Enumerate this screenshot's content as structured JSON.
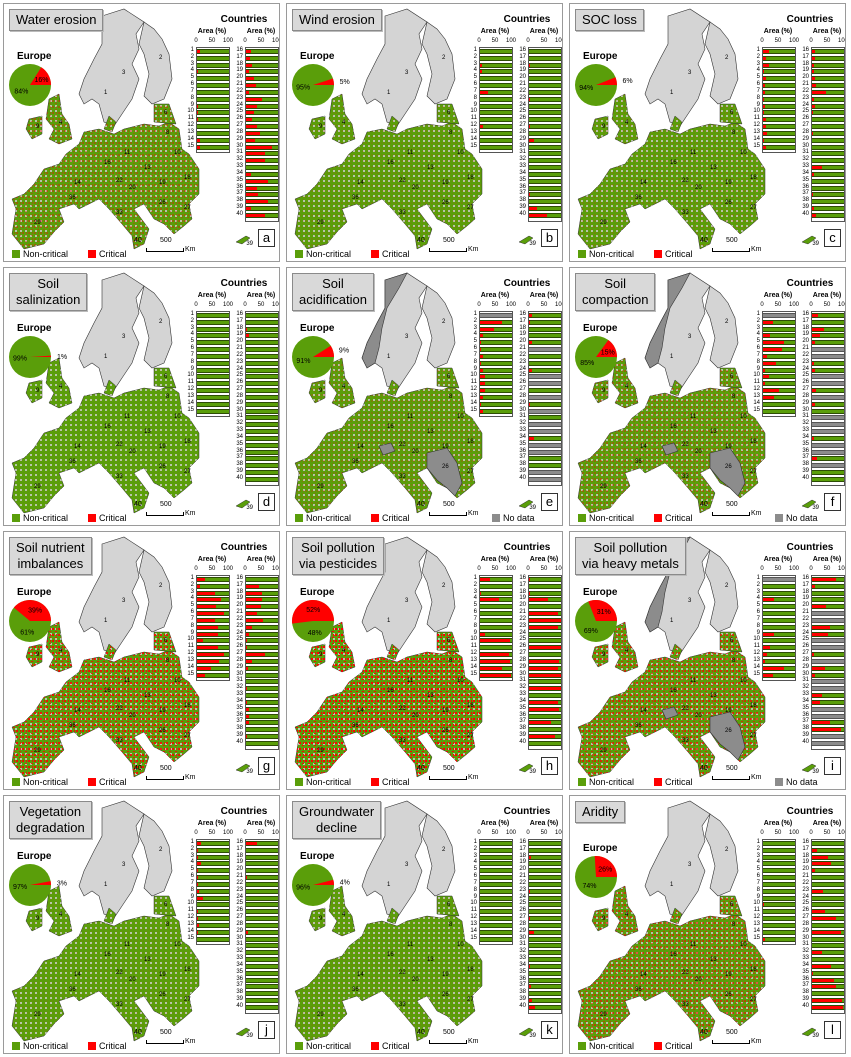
{
  "labels": {
    "countries": "Countries",
    "area": "Area (%)",
    "europe": "Europe",
    "ticks": [
      "0",
      "50",
      "100"
    ],
    "scale_value": "500",
    "scale_unit": "Km",
    "cyprus": "39",
    "islands": "40"
  },
  "legend": {
    "non_critical": "Non-critical",
    "critical": "Critical",
    "no_data": "No data"
  },
  "colors": {
    "non_critical": "#5a9e0a",
    "critical": "#ff0000",
    "no_data": "#8c8c8c",
    "land_other": "#d4d4d4"
  },
  "countries": [
    1,
    2,
    3,
    4,
    5,
    6,
    7,
    8,
    9,
    10,
    11,
    12,
    13,
    14,
    15,
    16,
    17,
    18,
    19,
    20,
    21,
    22,
    23,
    24,
    25,
    26,
    27,
    28,
    29,
    30,
    31,
    32,
    33,
    34,
    35,
    36,
    37,
    38,
    39,
    40
  ],
  "chart_data": {
    "type": "bar",
    "xlabel": "Area (%)",
    "xlim": [
      0,
      100
    ],
    "note_series": "critical share of area per country (remainder non-critical); null = no data",
    "panels": [
      {
        "letter": "a",
        "title": [
          "Water erosion"
        ],
        "europe": {
          "non_critical": 84,
          "critical": 16
        },
        "critical_pct": [
          10,
          0,
          0,
          3,
          0,
          0,
          0,
          0,
          2,
          2,
          2,
          0,
          0,
          10,
          10,
          15,
          12,
          20,
          8,
          25,
          30,
          8,
          50,
          35,
          25,
          20,
          35,
          45,
          28,
          80,
          60,
          58,
          0,
          15,
          68,
          33,
          37,
          68,
          15,
          58
        ]
      },
      {
        "letter": "b",
        "title": [
          "Wind erosion"
        ],
        "europe": {
          "non_critical": 95,
          "critical": 5
        },
        "critical_pct": [
          0,
          0,
          5,
          5,
          0,
          0,
          25,
          0,
          0,
          0,
          0,
          8,
          0,
          0,
          0,
          0,
          0,
          3,
          0,
          0,
          0,
          0,
          2,
          0,
          0,
          0,
          3,
          0,
          15,
          0,
          0,
          0,
          0,
          0,
          0,
          0,
          2,
          0,
          25,
          55
        ]
      },
      {
        "letter": "c",
        "title": [
          "SOC loss"
        ],
        "europe": {
          "non_critical": 94,
          "critical": 6
        },
        "critical_pct": [
          18,
          10,
          18,
          3,
          10,
          5,
          5,
          3,
          5,
          2,
          10,
          10,
          12,
          3,
          10,
          10,
          8,
          5,
          5,
          10,
          12,
          45,
          5,
          10,
          2,
          0,
          0,
          2,
          0,
          0,
          0,
          0,
          30,
          5,
          0,
          0,
          2,
          0,
          5,
          12
        ]
      },
      {
        "letter": "d",
        "title": [
          "Soil",
          "salinization"
        ],
        "europe": {
          "non_critical": 99,
          "critical": 1
        },
        "critical_pct": [
          0,
          0,
          0,
          0,
          0,
          0,
          0,
          0,
          0,
          0,
          0,
          0,
          0,
          0,
          0,
          0,
          0,
          3,
          8,
          0,
          0,
          0,
          0,
          0,
          0,
          0,
          0,
          0,
          0,
          0,
          0,
          0,
          0,
          0,
          0,
          0,
          0,
          0,
          0,
          0
        ]
      },
      {
        "letter": "e",
        "title": [
          "Soil",
          "acidification"
        ],
        "europe": {
          "non_critical": 91,
          "critical": 9
        },
        "critical_pct": [
          null,
          68,
          45,
          10,
          2,
          2,
          10,
          2,
          8,
          15,
          15,
          15,
          8,
          2,
          8,
          8,
          3,
          0,
          0,
          10,
          null,
          0,
          0,
          8,
          null,
          null,
          0,
          null,
          2,
          null,
          0,
          null,
          null,
          15,
          null,
          null,
          0,
          0,
          null,
          null
        ],
        "has_no_data": true
      },
      {
        "letter": "f",
        "title": [
          "Soil",
          "compaction"
        ],
        "europe": {
          "non_critical": 85,
          "critical": 15
        },
        "critical_pct": [
          null,
          30,
          0,
          22,
          65,
          60,
          12,
          42,
          5,
          20,
          5,
          50,
          35,
          0,
          0,
          20,
          0,
          38,
          25,
          10,
          null,
          null,
          5,
          8,
          null,
          null,
          12,
          null,
          8,
          0,
          null,
          null,
          null,
          5,
          null,
          null,
          15,
          null,
          0,
          0
        ],
        "has_no_data": true
      },
      {
        "letter": "g",
        "title": [
          "Soil nutrient",
          "imbalances"
        ],
        "europe": {
          "non_critical": 61,
          "critical": 39
        },
        "critical_pct": [
          25,
          10,
          55,
          75,
          60,
          85,
          57,
          65,
          65,
          18,
          65,
          85,
          68,
          45,
          25,
          0,
          40,
          50,
          50,
          48,
          35,
          52,
          20,
          10,
          3,
          2,
          58,
          18,
          6,
          0,
          0,
          2,
          0,
          2,
          10,
          10,
          8,
          0,
          2,
          0
        ]
      },
      {
        "letter": "h",
        "title": [
          "Soil pollution",
          "via pesticides"
        ],
        "europe": {
          "non_critical": 48,
          "critical": 52
        },
        "critical_pct": [
          30,
          0,
          2,
          60,
          0,
          0,
          0,
          0,
          15,
          95,
          0,
          90,
          95,
          70,
          98,
          3,
          0,
          2,
          60,
          0,
          90,
          100,
          90,
          0,
          0,
          100,
          0,
          95,
          90,
          100,
          0,
          100,
          0,
          90,
          95,
          0,
          70,
          0,
          80,
          0
        ]
      },
      {
        "letter": "i",
        "title": [
          "Soil pollution",
          "via heavy metals"
        ],
        "europe": {
          "non_critical": 69,
          "critical": 31
        },
        "critical_pct": [
          null,
          0,
          0,
          35,
          0,
          0,
          0,
          0,
          35,
          0,
          22,
          12,
          5,
          65,
          30,
          75,
          10,
          0,
          0,
          45,
          null,
          null,
          55,
          50,
          null,
          null,
          5,
          null,
          40,
          10,
          null,
          null,
          30,
          25,
          null,
          null,
          55,
          90,
          null,
          null
        ],
        "has_no_data": true
      },
      {
        "letter": "j",
        "title": [
          "Vegetation",
          "degradation"
        ],
        "europe": {
          "non_critical": 97,
          "critical": 3
        },
        "critical_pct": [
          12,
          2,
          3,
          12,
          2,
          3,
          3,
          5,
          18,
          0,
          2,
          2,
          5,
          3,
          0,
          35,
          0,
          0,
          0,
          0,
          2,
          0,
          0,
          0,
          0,
          0,
          0,
          0,
          5,
          0,
          0,
          0,
          0,
          0,
          0,
          0,
          0,
          0,
          0,
          0
        ]
      },
      {
        "letter": "k",
        "title": [
          "Groundwater",
          "decline"
        ],
        "europe": {
          "non_critical": 96,
          "critical": 4
        },
        "critical_pct": [
          0,
          0,
          0,
          0,
          0,
          0,
          0,
          0,
          0,
          0,
          0,
          0,
          0,
          0,
          0,
          0,
          0,
          5,
          0,
          0,
          0,
          0,
          2,
          0,
          0,
          0,
          3,
          0,
          15,
          0,
          0,
          0,
          0,
          2,
          0,
          0,
          5,
          0,
          10,
          20
        ]
      },
      {
        "letter": "l",
        "title": [
          "Aridity"
        ],
        "europe": {
          "non_critical": 74,
          "critical": 26
        },
        "critical_pct": [
          0,
          0,
          0,
          0,
          0,
          0,
          0,
          0,
          0,
          2,
          0,
          0,
          0,
          0,
          5,
          0,
          15,
          50,
          60,
          10,
          0,
          0,
          35,
          0,
          0,
          40,
          75,
          0,
          90,
          0,
          0,
          30,
          0,
          60,
          2,
          70,
          75,
          0,
          95,
          98
        ]
      }
    ]
  }
}
